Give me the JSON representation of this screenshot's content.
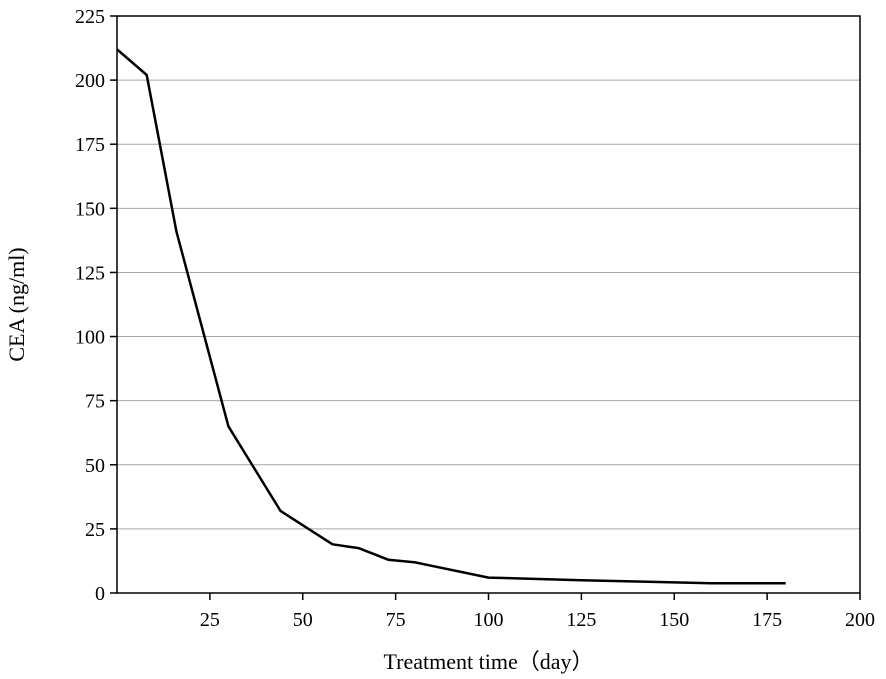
{
  "chart_data": {
    "type": "line",
    "title": "",
    "xlabel": "Treatment time（day）",
    "ylabel": "CEA (ng/ml)",
    "xlim": [
      0,
      200
    ],
    "ylim": [
      0,
      225
    ],
    "x_ticks": [
      25,
      50,
      75,
      100,
      125,
      150,
      175,
      200
    ],
    "y_ticks": [
      0,
      25,
      50,
      75,
      100,
      125,
      150,
      175,
      200,
      225
    ],
    "grid": "horizontal",
    "line_color": "#000000",
    "grid_color": "#a6a6a6",
    "series": [
      {
        "x": [
          0,
          8,
          16,
          30,
          44,
          58,
          65,
          73,
          80,
          100,
          125,
          140,
          160,
          180
        ],
        "y": [
          212,
          202,
          141,
          65,
          32,
          19,
          17.5,
          13,
          12,
          6,
          5,
          4.5,
          3.8,
          3.8
        ]
      }
    ]
  }
}
